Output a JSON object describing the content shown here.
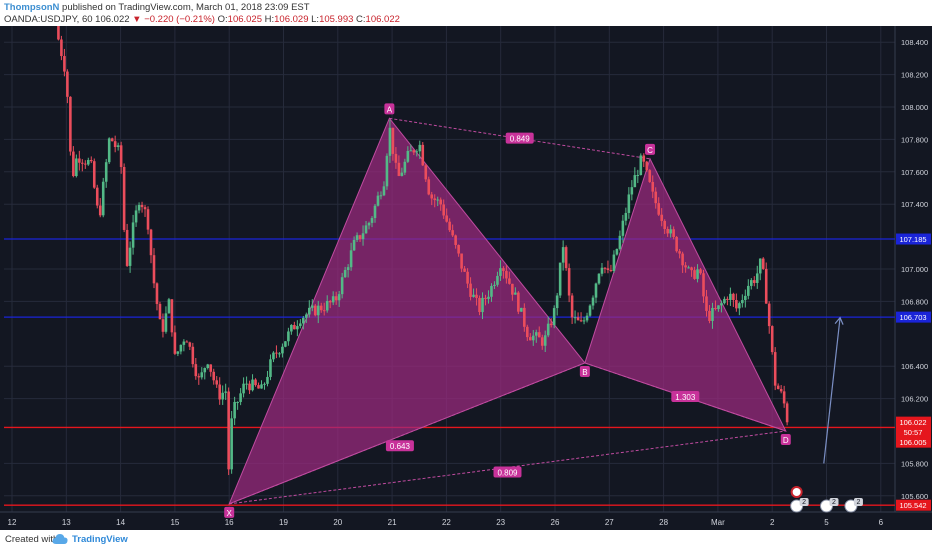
{
  "header": {
    "author": "ThompsonN",
    "published": " published on TradingView.com, March 01, 2018 23:09 EST",
    "symbol": "OANDA:USDJPY, 60",
    "last": "106.022",
    "change_icon": "triangle-down-icon",
    "change": "−0.220 (−0.21%)",
    "o_label": "O:",
    "o_value": "106.025",
    "h_label": "H:",
    "h_value": "106.029",
    "l_label": "L:",
    "l_value": "105.993",
    "c_label": "C:",
    "c_value": "106.022"
  },
  "footer": {
    "created_with": "Created with",
    "brand": "TradingView",
    "brand_icon": "tradingview-cloud-icon"
  },
  "colors": {
    "background": "#131722",
    "grid": "#262b3b",
    "bull": "#53b987",
    "bear": "#eb4d5c",
    "pattern_fill": "#9c2a7f",
    "pattern_stroke": "#c04ba0",
    "label_bg": "#c8329a",
    "support_line": "#e5161d",
    "resistance_line": "#1a24d8",
    "arrow": "#7b8fc4",
    "axis_text": "#d1d4dc"
  },
  "chart_data": {
    "type": "candlestick",
    "symbol": "OANDA:USDJPY",
    "interval": "60",
    "x_tick_labels": [
      "12",
      "13",
      "14",
      "15",
      "16",
      "19",
      "20",
      "21",
      "22",
      "23",
      "26",
      "27",
      "28",
      "Mar",
      "2",
      "5",
      "6"
    ],
    "y_tick_labels": [
      "105.600",
      "105.800",
      "106.200",
      "106.400",
      "106.800",
      "107.000",
      "107.400",
      "107.600",
      "107.800",
      "108.000",
      "108.200",
      "108.400"
    ],
    "ylim": [
      105.5,
      108.5
    ],
    "price_path": [
      [
        12.8,
        108.5
      ],
      [
        13.0,
        108.2
      ],
      [
        13.1,
        107.55
      ],
      [
        13.2,
        107.7
      ],
      [
        13.45,
        107.65
      ],
      [
        13.6,
        107.3
      ],
      [
        13.8,
        107.82
      ],
      [
        14.0,
        107.7
      ],
      [
        14.1,
        107.0
      ],
      [
        14.2,
        107.2
      ],
      [
        14.35,
        107.45
      ],
      [
        14.5,
        107.3
      ],
      [
        14.6,
        106.95
      ],
      [
        14.75,
        106.6
      ],
      [
        14.9,
        106.8
      ],
      [
        15.0,
        106.45
      ],
      [
        15.2,
        106.6
      ],
      [
        15.45,
        106.3
      ],
      [
        15.6,
        106.45
      ],
      [
        15.8,
        106.22
      ],
      [
        15.95,
        106.25
      ],
      [
        16.0,
        105.65
      ],
      [
        16.05,
        106.1
      ],
      [
        16.3,
        106.3
      ],
      [
        16.6,
        106.25
      ],
      [
        16.8,
        106.45
      ],
      [
        17.0,
        106.55
      ],
      [
        17.3,
        106.7
      ],
      [
        17.6,
        106.75
      ],
      [
        17.95,
        106.8
      ],
      [
        18.3,
        107.15
      ],
      [
        18.6,
        107.3
      ],
      [
        18.85,
        107.55
      ],
      [
        18.95,
        107.88
      ],
      [
        19.1,
        107.55
      ],
      [
        19.3,
        107.7
      ],
      [
        19.5,
        107.78
      ],
      [
        19.7,
        107.45
      ],
      [
        19.9,
        107.4
      ],
      [
        20.1,
        107.2
      ],
      [
        20.4,
        106.9
      ],
      [
        20.6,
        106.75
      ],
      [
        20.85,
        106.9
      ],
      [
        21.0,
        107.05
      ],
      [
        21.3,
        106.8
      ],
      [
        21.5,
        106.6
      ],
      [
        21.8,
        106.55
      ],
      [
        22.0,
        106.75
      ],
      [
        22.15,
        107.15
      ],
      [
        22.3,
        106.7
      ],
      [
        22.5,
        106.65
      ],
      [
        22.7,
        106.85
      ],
      [
        22.85,
        107.05
      ],
      [
        23.0,
        106.95
      ],
      [
        23.2,
        107.2
      ],
      [
        23.4,
        107.5
      ],
      [
        23.6,
        107.68
      ],
      [
        23.8,
        107.45
      ],
      [
        24.0,
        107.3
      ],
      [
        24.3,
        107.1
      ],
      [
        24.5,
        106.95
      ],
      [
        24.65,
        107.0
      ],
      [
        24.8,
        106.7
      ],
      [
        25.0,
        106.75
      ],
      [
        25.2,
        106.85
      ],
      [
        25.35,
        106.75
      ],
      [
        25.55,
        106.9
      ],
      [
        25.7,
        106.95
      ],
      [
        25.8,
        107.05
      ],
      [
        25.9,
        106.8
      ],
      [
        26.05,
        106.3
      ],
      [
        26.2,
        106.2
      ],
      [
        26.32,
        106.0
      ]
    ],
    "xabcd_pattern": {
      "points": [
        {
          "label": "X",
          "x": 16.0,
          "price": 105.55
        },
        {
          "label": "A",
          "x": 18.95,
          "price": 107.93
        },
        {
          "label": "B",
          "x": 22.55,
          "price": 106.42
        },
        {
          "label": "C",
          "x": 23.75,
          "price": 107.68
        },
        {
          "label": "D",
          "x": 26.25,
          "price": 106.0
        }
      ],
      "ratios": [
        {
          "label": "0.849",
          "between": "A-C"
        },
        {
          "label": "0.643",
          "between": "X-B"
        },
        {
          "label": "1.303",
          "between": "B-D"
        },
        {
          "label": "0.809",
          "between": "X-D"
        }
      ]
    },
    "horizontal_lines": [
      {
        "price": 107.185,
        "label": "107.185",
        "color": "#1a24d8"
      },
      {
        "price": 106.703,
        "label": "106.703",
        "color": "#1a24d8"
      },
      {
        "price": 106.022,
        "label": "106.022",
        "color": "#e5161d"
      },
      {
        "price": 105.542,
        "label": "105.542",
        "color": "#e5161d"
      }
    ],
    "price_tags": [
      {
        "label": "106.022",
        "color": "#e5161d"
      },
      {
        "label": "50:57",
        "color": "#e5161d"
      },
      {
        "label": "106.005",
        "color": "#e5161d"
      }
    ],
    "projection_arrow": {
      "from": [
        26.95,
        105.8
      ],
      "to": [
        27.25,
        106.7
      ]
    },
    "event_markers": [
      {
        "label": "2",
        "icon": "calendar-event-icon"
      },
      {
        "label": "2",
        "icon": "calendar-event-icon"
      },
      {
        "label": "2",
        "icon": "flag-us-icon"
      }
    ]
  }
}
